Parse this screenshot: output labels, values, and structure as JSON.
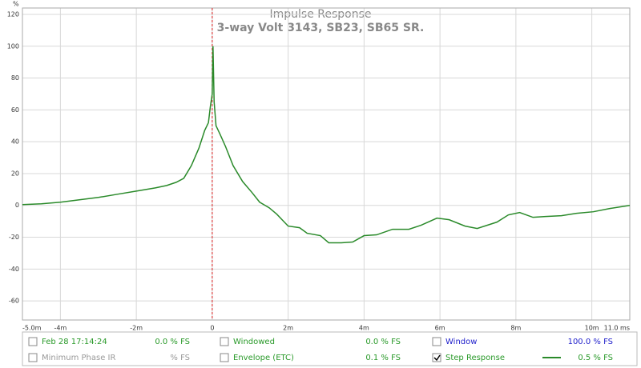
{
  "chart_data": {
    "type": "line",
    "title": "Impulse Response",
    "subtitle": "3-way Volt 3143, SB23, SB65 SR.",
    "y_label": "%",
    "x": [
      -5,
      -4.5,
      -4,
      -3.5,
      -3,
      -2.5,
      -2,
      -1.5,
      -1.2,
      -0.95,
      -0.75,
      -0.55,
      -0.35,
      -0.2,
      -0.1,
      -0.05,
      0,
      0.02,
      0.05,
      0.1,
      0.2,
      0.35,
      0.55,
      0.8,
      1.05,
      1.25,
      1.5,
      1.7,
      2.0,
      2.3,
      2.5,
      2.85,
      3.07,
      3.4,
      3.7,
      4.0,
      4.33,
      4.75,
      5.18,
      5.5,
      5.92,
      6.24,
      6.66,
      6.98,
      7.5,
      7.8,
      8.1,
      8.45,
      8.78,
      9.2,
      9.6,
      10.04,
      10.46,
      11
    ],
    "series": [
      {
        "color": "#2a8a2a",
        "values": [
          0.5,
          1,
          2,
          3.5,
          5,
          7,
          9,
          11,
          12.5,
          14.5,
          17,
          25,
          36,
          47,
          52,
          62,
          70,
          100,
          65,
          50,
          45,
          37,
          25,
          15,
          8,
          2,
          -1.5,
          -5.5,
          -13,
          -14,
          -17.5,
          -19,
          -23.5,
          -23.5,
          -23,
          -19,
          -18.5,
          -15,
          -15,
          -12.5,
          -8,
          -9,
          -13,
          -14.5,
          -10.5,
          -6,
          -4.5,
          -7.5,
          -7,
          -6.5,
          -5,
          -4,
          -2,
          0
        ]
      }
    ],
    "xlim": [
      -5,
      11
    ],
    "ylim": [
      -72,
      124
    ],
    "xticks": [
      {
        "value": -5,
        "label": "-5.0m"
      },
      {
        "value": -4,
        "label": "-4m"
      },
      {
        "value": -2,
        "label": "-2m"
      },
      0,
      {
        "value": 2,
        "label": "2m"
      },
      {
        "value": 4,
        "label": "4m"
      },
      {
        "value": 6,
        "label": "6m"
      },
      {
        "value": 8,
        "label": "8m"
      },
      {
        "value": 10,
        "label": "10m"
      },
      {
        "value": 11,
        "label": "11.0 ms"
      }
    ],
    "yticks": [
      -60,
      -40,
      -20,
      0,
      20,
      40,
      60,
      80,
      100,
      120
    ],
    "grid": true,
    "reference_line": {
      "x": 0,
      "color": "#d22"
    }
  },
  "panel": {
    "items": [
      {
        "label": "Feb 28 17:14:24",
        "reading": "0.0 % FS",
        "color": "#2a9a2a",
        "checked": false
      },
      {
        "label": "Windowed",
        "reading": "0.0 % FS",
        "color": "#2a9a2a",
        "checked": false
      },
      {
        "label": "Window",
        "reading": "100.0 % FS",
        "color": "#2222cc",
        "checked": false
      },
      {
        "label": "Minimum Phase IR",
        "reading": "% FS",
        "color": "#999999",
        "checked": false
      },
      {
        "label": "Envelope (ETC)",
        "reading": "0.1 % FS",
        "color": "#2a9a2a",
        "checked": false
      },
      {
        "label": "Step Response",
        "reading": "0.5 % FS",
        "color": "#2a9a2a",
        "checked": true
      }
    ]
  }
}
